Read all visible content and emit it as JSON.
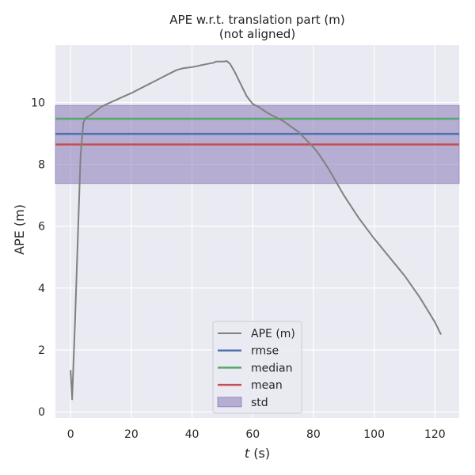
{
  "chart_data": {
    "type": "line",
    "title": "APE w.r.t. translation part (m)",
    "subtitle": "(not aligned)",
    "xlabel_italic": "t",
    "xlabel_rest": " (s)",
    "ylabel": "APE (m)",
    "xlim": [
      -5,
      128
    ],
    "ylim": [
      -0.2,
      11.85
    ],
    "xticks": [
      0,
      20,
      40,
      60,
      80,
      100,
      120
    ],
    "yticks": [
      0,
      2,
      4,
      6,
      8,
      10
    ],
    "grid": true,
    "legend_position": "lower-center",
    "series": [
      {
        "name": "APE (m)",
        "color": "#808080",
        "x": [
          0,
          0.5,
          1.5,
          2.5,
          3.3,
          4.2,
          5,
          7,
          10,
          12,
          15,
          17,
          20,
          25,
          28,
          30,
          33,
          35,
          37,
          40,
          42,
          45,
          47,
          48,
          50,
          51.5,
          52.5,
          54,
          56,
          58,
          60,
          62,
          65,
          70,
          75,
          80,
          82,
          85,
          90,
          95,
          100,
          105,
          110,
          115,
          120,
          122
        ],
        "y": [
          1.35,
          0.4,
          3.0,
          6.0,
          8.3,
          9.35,
          9.5,
          9.62,
          9.85,
          9.95,
          10.08,
          10.17,
          10.3,
          10.55,
          10.7,
          10.8,
          10.95,
          11.05,
          11.1,
          11.14,
          11.18,
          11.24,
          11.28,
          11.32,
          11.32,
          11.33,
          11.25,
          11.0,
          10.6,
          10.2,
          9.95,
          9.85,
          9.65,
          9.4,
          9.05,
          8.55,
          8.3,
          7.85,
          7.0,
          6.25,
          5.6,
          5.0,
          4.4,
          3.7,
          2.9,
          2.5
        ]
      }
    ],
    "stats": [
      {
        "name": "rmse",
        "value": 8.98,
        "color": "#4c72b0"
      },
      {
        "name": "median",
        "value": 9.47,
        "color": "#55a868"
      },
      {
        "name": "mean",
        "value": 8.64,
        "color": "#c44e52"
      }
    ],
    "std_band": {
      "name": "std",
      "low": 7.38,
      "high": 9.9,
      "color": "#8172b2"
    }
  }
}
